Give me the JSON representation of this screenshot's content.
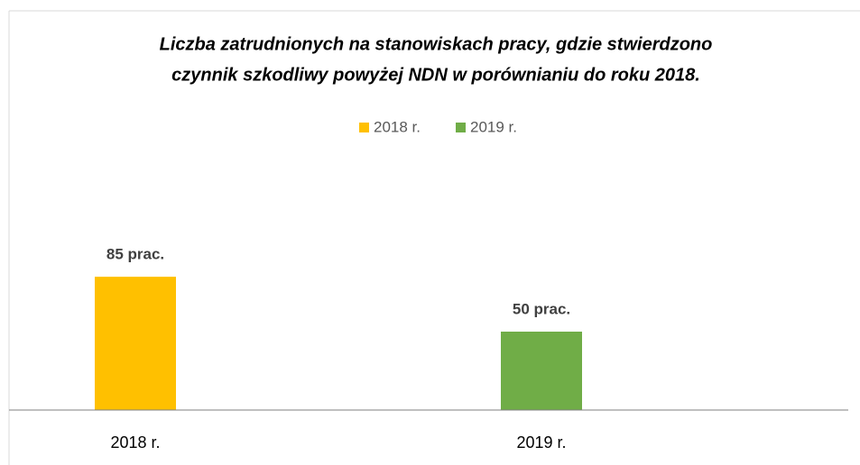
{
  "chart_data": {
    "type": "bar",
    "title": [
      "Liczba zatrudnionych na stanowiskach pracy, gdzie stwierdzono",
      "czynnik szkodliwy powyżej NDN w porównianiu do roku 2018."
    ],
    "categories": [
      "2018 r.",
      "2019 r."
    ],
    "series": [
      {
        "name": "2018 r.",
        "color": "#ffc000",
        "values": [
          85,
          null
        ],
        "value_labels": [
          "85 prac.",
          null
        ]
      },
      {
        "name": "2019 r.",
        "color": "#70ad47",
        "values": [
          null,
          50
        ],
        "value_labels": [
          null,
          "50 prac."
        ]
      }
    ],
    "ylim": [
      0,
      100
    ]
  }
}
